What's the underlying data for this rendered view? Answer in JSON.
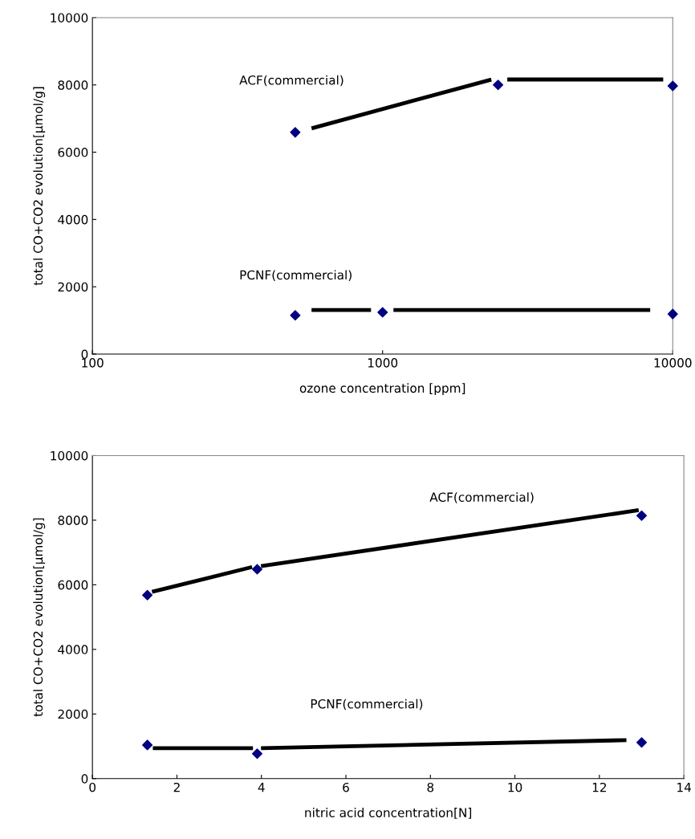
{
  "chart_data": [
    {
      "type": "scatter",
      "xlabel": "ozone concentration [ppm]",
      "ylabel": "total CO+CO2 evolution[μmol/g]",
      "log": "x",
      "xlim": [
        100,
        10000
      ],
      "xticks": [
        100,
        1000,
        10000
      ],
      "ylim": [
        0,
        10000
      ],
      "yticks": [
        0,
        2000,
        4000,
        6000,
        8000,
        10000
      ],
      "grid": false,
      "legend": false,
      "marker": "diamond",
      "series": [
        {
          "color": "#000080",
          "x": [
            500,
            2500,
            10000
          ],
          "values": [
            6590,
            8000,
            7970
          ]
        },
        {
          "color": "#000080",
          "x": [
            500,
            1000,
            10000
          ],
          "values": [
            1150,
            1240,
            1190
          ]
        },
        {
          "type": "line",
          "color": "#000000",
          "marker": "none",
          "line_style": "solid",
          "x": [
            569,
            2370
          ],
          "values": [
            6710,
            8160
          ]
        },
        {
          "type": "line",
          "color": "#000000",
          "marker": "none",
          "line_style": "solid",
          "x": [
            2690,
            9270
          ],
          "values": [
            8160,
            8160
          ]
        },
        {
          "type": "line",
          "color": "#000000",
          "marker": "none",
          "line_style": "solid",
          "x": [
            569,
            912
          ],
          "values": [
            1310,
            1310
          ]
        },
        {
          "type": "line",
          "color": "#000000",
          "marker": "none",
          "line_style": "solid",
          "x": [
            1090,
            8360
          ],
          "values": [
            1310,
            1310
          ]
        }
      ],
      "annotations": [
        "ACF(commercial)",
        "PCNF(commercial)"
      ]
    },
    {
      "type": "scatter",
      "xlabel": "nitric acid concentration[N]",
      "ylabel": "total CO+CO2 evolution[μmol/g]",
      "xlim": [
        0,
        14
      ],
      "xticks": [
        0,
        2,
        4,
        6,
        8,
        10,
        12,
        14
      ],
      "ylim": [
        0,
        10000
      ],
      "yticks": [
        0,
        2000,
        4000,
        6000,
        8000,
        10000
      ],
      "grid": false,
      "legend": false,
      "marker": "diamond",
      "series": [
        {
          "color": "#000080",
          "x": [
            1.3,
            3.9,
            13
          ],
          "values": [
            5680,
            6480,
            8140
          ]
        },
        {
          "color": "#000080",
          "x": [
            1.3,
            3.9,
            13
          ],
          "values": [
            1040,
            770,
            1120
          ]
        },
        {
          "type": "line",
          "color": "#000000",
          "marker": "none",
          "line_style": "solid",
          "x": [
            1.41,
            3.78
          ],
          "values": [
            5780,
            6550
          ]
        },
        {
          "type": "line",
          "color": "#000000",
          "marker": "none",
          "line_style": "solid",
          "x": [
            3.99,
            12.93
          ],
          "values": [
            6580,
            8310
          ]
        },
        {
          "type": "line",
          "color": "#000000",
          "marker": "none",
          "line_style": "solid",
          "x": [
            1.43,
            3.8
          ],
          "values": [
            940,
            940
          ]
        },
        {
          "type": "line",
          "color": "#000000",
          "marker": "none",
          "line_style": "solid",
          "x": [
            3.99,
            12.64
          ],
          "values": [
            940,
            1190
          ]
        }
      ],
      "annotations": [
        "ACF(commercial)",
        "PCNF(commercial)"
      ]
    }
  ]
}
